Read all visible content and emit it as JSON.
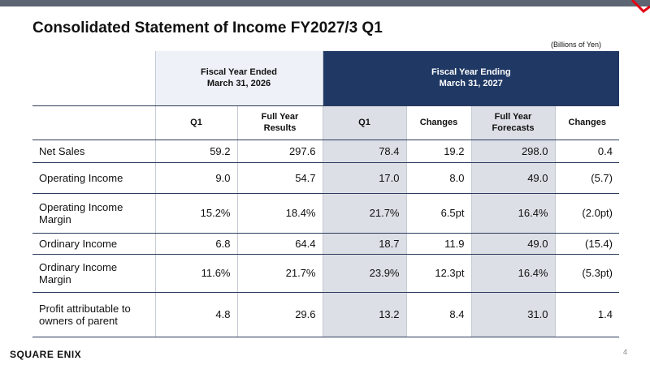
{
  "header": {
    "title": "Consolidated Statement of Income FY2027/3 Q1",
    "unit": "(Billions of Yen)"
  },
  "table": {
    "groups": [
      {
        "lines": [
          "Fiscal Year Ended",
          "March 31, 2026"
        ]
      },
      {
        "lines": [
          "Fiscal Year Ending",
          "March 31, 2027"
        ]
      }
    ],
    "columns": [
      [
        "Q1"
      ],
      [
        "Full Year",
        "Results"
      ],
      [
        "Q1"
      ],
      [
        "Changes"
      ],
      [
        "Full Year",
        "Forecasts"
      ],
      [
        "Changes"
      ]
    ],
    "rows": [
      [
        "Net Sales",
        "59.2",
        "297.6",
        "78.4",
        "19.2",
        "298.0",
        "0.4"
      ],
      [
        "Operating Income",
        "9.0",
        "54.7",
        "17.0",
        "8.0",
        "49.0",
        "(5.7)"
      ],
      [
        "Operating Income Margin",
        "15.2%",
        "18.4%",
        "21.7%",
        "6.5pt",
        "16.4%",
        "(2.0pt)"
      ],
      [
        "Ordinary Income",
        "6.8",
        "64.4",
        "18.7",
        "11.9",
        "49.0",
        "(15.4)"
      ],
      [
        "Ordinary Income Margin",
        "11.6%",
        "21.7%",
        "23.9%",
        "12.3pt",
        "16.4%",
        "(5.3pt)"
      ],
      [
        "Profit attributable to owners of parent",
        "4.8",
        "29.6",
        "13.2",
        "8.4",
        "31.0",
        "1.4"
      ]
    ]
  },
  "footer": {
    "logo": "SQUARE ENIX",
    "page": "4"
  }
}
